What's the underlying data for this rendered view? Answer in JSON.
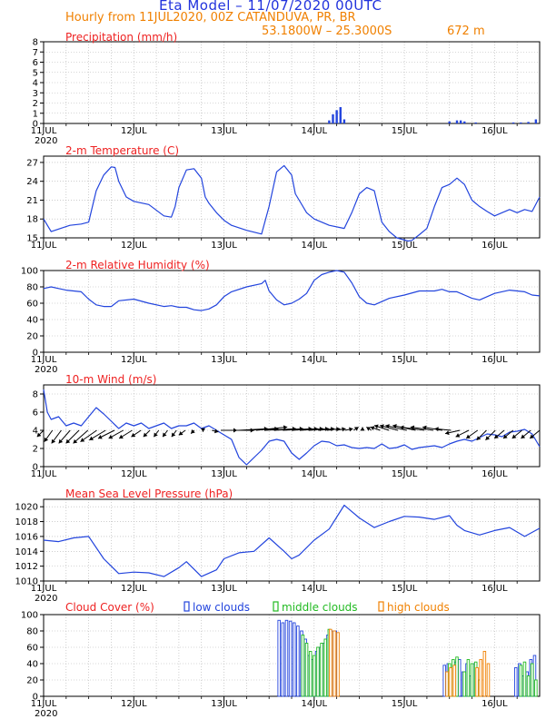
{
  "header": {
    "title": "Eta Model – 11/07/2020 00UTC",
    "subtitle": "Hourly from 11JUL2020, 00Z  CATANDUVA, PR, BR",
    "coords": "53.1800W – 25.3000S",
    "elevation": "672  m"
  },
  "colors": {
    "line": "#2244dd",
    "title": "#ee2222",
    "header_blue": "#2233dd",
    "header_orange": "#f08000",
    "low": "#2244dd",
    "middle": "#22bb22",
    "high": "#f08000"
  },
  "chart_data": [
    {
      "id": "precip",
      "type": "bar",
      "title": "Precipitation (mm/h)",
      "ylim": [
        0,
        8
      ],
      "yticks": [
        0,
        1,
        2,
        3,
        4,
        5,
        6,
        7,
        8
      ],
      "xlim": [
        0,
        132
      ],
      "xticks": [
        "11JUL",
        "12JUL",
        "13JUL",
        "14JUL",
        "15JUL",
        "16JUL"
      ],
      "year_label": "2020",
      "x": [
        76,
        77,
        78,
        79,
        80,
        108,
        110,
        111,
        112,
        115,
        125,
        127,
        129,
        131
      ],
      "values": [
        0.3,
        0.9,
        1.3,
        1.6,
        0.4,
        0.2,
        0.3,
        0.3,
        0.2,
        0.1,
        0.1,
        0.1,
        0.15,
        0.4
      ]
    },
    {
      "id": "temp",
      "type": "line",
      "title": "2-m Temperature (C)",
      "ylim": [
        15,
        28
      ],
      "yticks": [
        15,
        18,
        21,
        24,
        27
      ],
      "xlim": [
        0,
        132
      ],
      "xticks": [
        "11JUL",
        "12JUL",
        "13JUL",
        "14JUL",
        "15JUL",
        "16JUL"
      ],
      "x": [
        0,
        2,
        5,
        7,
        10,
        12,
        14,
        16,
        18,
        19,
        20,
        22,
        24,
        28,
        32,
        34,
        35,
        36,
        38,
        40,
        42,
        43,
        44,
        46,
        48,
        50,
        54,
        58,
        60,
        62,
        64,
        66,
        67,
        68,
        70,
        72,
        76,
        80,
        82,
        84,
        86,
        88,
        89,
        90,
        92,
        94,
        97,
        98,
        100,
        102,
        104,
        106,
        108,
        110,
        112,
        114,
        116,
        118,
        120,
        122,
        124,
        126,
        128,
        130,
        132
      ],
      "values": [
        18.0,
        16.0,
        16.6,
        17.0,
        17.2,
        17.5,
        22.5,
        25.0,
        26.3,
        26.2,
        24.0,
        21.5,
        20.8,
        20.3,
        18.5,
        18.3,
        20.0,
        23.0,
        25.8,
        26.0,
        24.5,
        21.5,
        20.5,
        19.0,
        17.8,
        17.0,
        16.2,
        15.6,
        20.0,
        25.5,
        26.5,
        25.0,
        22.0,
        21.0,
        19.0,
        18.0,
        17.0,
        16.5,
        19.0,
        22.0,
        23.0,
        22.5,
        20.0,
        17.5,
        16.0,
        15.0,
        14.5,
        14.6,
        15.5,
        16.5,
        20.0,
        23.0,
        23.5,
        24.5,
        23.5,
        21.0,
        20.0,
        19.2,
        18.5,
        19.0,
        19.5,
        19.0,
        19.5,
        19.2,
        21.5
      ]
    },
    {
      "id": "rh",
      "type": "line",
      "title": "2-m Relative Humidity (%)",
      "ylim": [
        0,
        100
      ],
      "yticks": [
        0,
        20,
        40,
        60,
        80,
        100
      ],
      "xlim": [
        0,
        132
      ],
      "xticks": [
        "11JUL",
        "12JUL",
        "13JUL",
        "14JUL",
        "15JUL",
        "16JUL"
      ],
      "year_label": "2020",
      "x": [
        0,
        2,
        4,
        6,
        8,
        10,
        12,
        14,
        16,
        18,
        20,
        24,
        28,
        32,
        34,
        36,
        38,
        40,
        42,
        44,
        46,
        48,
        50,
        54,
        58,
        59,
        60,
        62,
        64,
        66,
        68,
        70,
        72,
        74,
        76,
        78,
        80,
        82,
        84,
        86,
        88,
        90,
        92,
        96,
        100,
        104,
        106,
        108,
        110,
        112,
        114,
        116,
        118,
        120,
        124,
        128,
        130,
        132
      ],
      "values": [
        78,
        80,
        78,
        76,
        75,
        74,
        65,
        58,
        56,
        56,
        63,
        65,
        60,
        56,
        57,
        55,
        55,
        52,
        51,
        53,
        58,
        68,
        74,
        80,
        84,
        88,
        75,
        64,
        58,
        60,
        65,
        72,
        88,
        95,
        98,
        100,
        98,
        85,
        68,
        60,
        58,
        62,
        66,
        70,
        75,
        75,
        77,
        74,
        74,
        70,
        66,
        64,
        68,
        72,
        76,
        74,
        70,
        69
      ]
    },
    {
      "id": "wind",
      "type": "line",
      "title": "10-m Wind (m/s)",
      "ylim": [
        0,
        9
      ],
      "yticks": [
        0,
        2,
        4,
        6,
        8
      ],
      "xlim": [
        0,
        132
      ],
      "xticks": [
        "11JUL",
        "12JUL",
        "13JUL",
        "14JUL",
        "15JUL",
        "16JUL"
      ],
      "x": [
        0,
        1,
        2,
        4,
        6,
        8,
        10,
        12,
        14,
        16,
        18,
        20,
        22,
        24,
        26,
        28,
        30,
        32,
        34,
        36,
        38,
        40,
        42,
        44,
        46,
        48,
        50,
        52,
        54,
        56,
        58,
        60,
        62,
        64,
        66,
        68,
        70,
        72,
        74,
        76,
        78,
        80,
        82,
        84,
        86,
        88,
        90,
        92,
        94,
        96,
        98,
        100,
        102,
        104,
        106,
        108,
        110,
        112,
        114,
        116,
        118,
        120,
        122,
        124,
        126,
        128,
        130,
        132
      ],
      "values": [
        8.5,
        6.0,
        5.2,
        5.5,
        4.5,
        4.8,
        4.5,
        5.5,
        6.5,
        5.8,
        5.0,
        4.2,
        4.8,
        4.5,
        4.8,
        4.2,
        4.5,
        4.8,
        4.2,
        4.5,
        4.5,
        4.8,
        4.2,
        4.5,
        4.0,
        3.5,
        3.0,
        1.0,
        0.2,
        1.0,
        1.8,
        2.8,
        3.0,
        2.8,
        1.5,
        0.8,
        1.5,
        2.3,
        2.8,
        2.7,
        2.3,
        2.4,
        2.1,
        2.0,
        2.1,
        2.0,
        2.5,
        2.0,
        2.1,
        2.4,
        1.9,
        2.1,
        2.2,
        2.3,
        2.1,
        2.5,
        2.8,
        3.0,
        2.8,
        3.2,
        3.6,
        3.5,
        3.3,
        3.8,
        3.9,
        4.1,
        3.6,
        2.2
      ],
      "barbs_y": 4,
      "barb_dx": [
        -0.4,
        -0.5,
        -0.6,
        -0.7,
        -0.8,
        -0.9,
        -1.0,
        -1.0,
        -1.0,
        -0.9,
        -0.8,
        -0.6,
        -0.4,
        -0.3,
        -0.3,
        -0.3,
        -0.4,
        -0.2,
        0.0,
        0.4,
        1.0,
        1.5,
        1.8,
        1.9,
        1.9,
        1.9,
        1.8,
        1.8,
        1.6,
        1.4,
        1.2,
        1.0,
        0.8,
        0.6,
        0.5,
        0.3,
        0.0,
        -0.3,
        -0.6,
        -0.9,
        -1.1,
        -1.3,
        -1.4,
        -1.5,
        -1.4,
        -1.2,
        -1.0,
        -0.9,
        -0.8,
        -0.7,
        -0.6,
        -0.6,
        -0.6,
        -0.6,
        -0.6,
        -0.6,
        -0.6
      ],
      "barb_dy": [
        0.4,
        0.7,
        0.8,
        0.8,
        0.8,
        0.8,
        0.7,
        0.6,
        0.5,
        0.5,
        0.5,
        0.4,
        0.4,
        0.4,
        0.4,
        0.4,
        0.3,
        0.2,
        0.1,
        0.1,
        0.0,
        0.0,
        -0.1,
        -0.1,
        -0.2,
        -0.1,
        -0.1,
        -0.1,
        -0.1,
        -0.1,
        -0.1,
        -0.1,
        -0.1,
        -0.1,
        -0.1,
        -0.2,
        -0.2,
        -0.2,
        -0.2,
        -0.3,
        -0.3,
        -0.3,
        -0.3,
        -0.2,
        -0.2,
        -0.2,
        -0.1,
        0.2,
        0.4,
        0.5,
        0.6,
        0.6,
        0.5,
        0.5,
        0.5,
        0.5,
        0.5
      ]
    },
    {
      "id": "mslp",
      "type": "line",
      "title": "Mean Sea Level Pressure (hPa)",
      "ylim": [
        1010,
        1021
      ],
      "yticks": [
        1010,
        1012,
        1014,
        1016,
        1018,
        1020
      ],
      "xlim": [
        0,
        132
      ],
      "xticks": [
        "11JUL",
        "12JUL",
        "13JUL",
        "14JUL",
        "15JUL",
        "16JUL"
      ],
      "year_label": "2020",
      "x": [
        0,
        4,
        8,
        12,
        16,
        20,
        24,
        28,
        32,
        36,
        38,
        40,
        42,
        46,
        48,
        52,
        56,
        60,
        64,
        66,
        68,
        72,
        76,
        80,
        84,
        88,
        92,
        96,
        100,
        104,
        108,
        110,
        112,
        116,
        120,
        124,
        128,
        132
      ],
      "values": [
        1015.5,
        1015.3,
        1015.8,
        1016.0,
        1013.0,
        1011.0,
        1011.2,
        1011.1,
        1010.6,
        1011.8,
        1012.6,
        1011.6,
        1010.6,
        1011.5,
        1013.0,
        1013.8,
        1014.0,
        1015.8,
        1014.0,
        1013.0,
        1013.5,
        1015.5,
        1017.0,
        1020.2,
        1018.5,
        1017.2,
        1018.0,
        1018.7,
        1018.6,
        1018.3,
        1018.8,
        1017.5,
        1016.8,
        1016.2,
        1016.8,
        1017.2,
        1016.0,
        1017.1
      ]
    },
    {
      "id": "cloud",
      "type": "bar",
      "title": "Cloud Cover (%)",
      "legend": [
        "low clouds",
        "middle clouds",
        "high clouds"
      ],
      "ylim": [
        0,
        100
      ],
      "yticks": [
        0,
        20,
        40,
        60,
        80,
        100
      ],
      "xlim": [
        0,
        132
      ],
      "xticks": [
        "11JUL",
        "12JUL",
        "13JUL",
        "14JUL",
        "15JUL",
        "16JUL"
      ],
      "year_label": "2020",
      "series": [
        {
          "name": "low clouds",
          "x": [
            63,
            64,
            65,
            66,
            67,
            68,
            69,
            70,
            71,
            72,
            73,
            74,
            75,
            76,
            77,
            78,
            107,
            108,
            109,
            110,
            111,
            112,
            113,
            114,
            115,
            126,
            127,
            128,
            129,
            130,
            131
          ],
          "values": [
            93,
            90,
            93,
            92,
            90,
            86,
            80,
            70,
            50,
            45,
            55,
            60,
            65,
            75,
            80,
            80,
            38,
            40,
            35,
            42,
            45,
            30,
            40,
            25,
            40,
            35,
            40,
            25,
            30,
            45,
            50
          ]
        },
        {
          "name": "middle clouds",
          "x": [
            69,
            70,
            71,
            72,
            73,
            74,
            75,
            76,
            108,
            109,
            110,
            112,
            113,
            114,
            115,
            116,
            127,
            128,
            129,
            130,
            131
          ],
          "values": [
            75,
            65,
            55,
            50,
            60,
            65,
            70,
            82,
            40,
            45,
            48,
            30,
            45,
            40,
            42,
            20,
            38,
            42,
            25,
            40,
            20
          ]
        },
        {
          "name": "high clouds",
          "x": [
            76,
            77,
            78,
            107,
            108,
            109,
            115,
            116,
            117,
            118
          ],
          "values": [
            82,
            80,
            78,
            30,
            35,
            38,
            35,
            45,
            55,
            40
          ]
        }
      ]
    }
  ]
}
